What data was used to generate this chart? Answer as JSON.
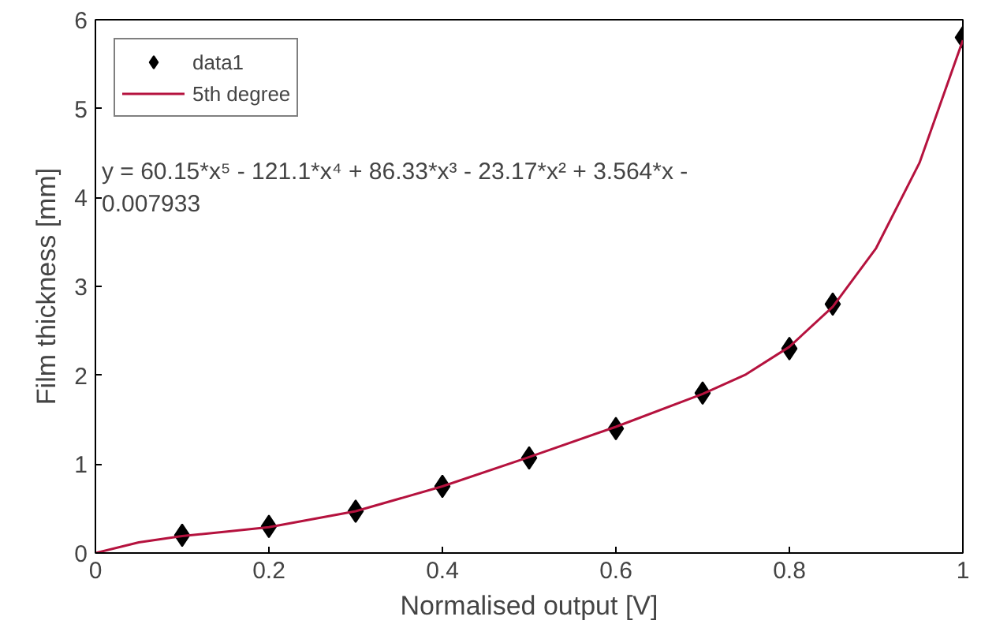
{
  "chart_data": {
    "type": "scatter",
    "xlabel": "Normalised output [V]",
    "ylabel": "Film thickness [mm]",
    "xlim": [
      0,
      1
    ],
    "ylim": [
      0,
      6
    ],
    "xticks": [
      0,
      0.2,
      0.4,
      0.6,
      0.8,
      1
    ],
    "yticks": [
      0,
      1,
      2,
      3,
      4,
      5,
      6
    ],
    "grid": false,
    "legend": "top left",
    "series": [
      {
        "name": "data1",
        "marker": "diamond",
        "color": "#000000",
        "x": [
          0.1,
          0.2,
          0.3,
          0.4,
          0.5,
          0.6,
          0.7,
          0.8,
          0.85,
          1.0
        ],
        "values": [
          0.2,
          0.3,
          0.47,
          0.75,
          1.07,
          1.4,
          1.8,
          2.3,
          2.8,
          5.8
        ]
      },
      {
        "name": "5th degree",
        "type": "line",
        "marker": "none",
        "line_style": "solid",
        "color": "#b5123e",
        "x": [
          0,
          0.05,
          0.1,
          0.15,
          0.2,
          0.3,
          0.4,
          0.5,
          0.6,
          0.7,
          0.75,
          0.8,
          0.85,
          0.9,
          0.95,
          1.0
        ],
        "values": [
          0,
          0.12,
          0.19,
          0.24,
          0.29,
          0.47,
          0.75,
          1.08,
          1.42,
          1.79,
          2.01,
          2.32,
          2.77,
          3.43,
          4.39,
          5.77
        ]
      }
    ],
    "annotations": [
      "y = 60.15*x⁵ - 121.1*x⁴ + 86.33*x³ - 23.17*x² + 3.564*x -\n0.007933"
    ]
  }
}
